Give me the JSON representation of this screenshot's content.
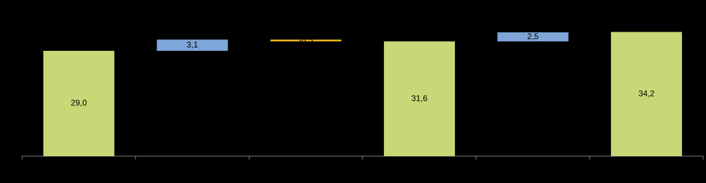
{
  "chart_data": {
    "type": "waterfall",
    "categories": [
      null,
      null,
      null,
      null,
      null,
      null
    ],
    "values": [
      29.0,
      3.1,
      -0.5,
      31.6,
      2.5,
      34.2
    ],
    "value_labels": [
      "29,0",
      "3,1",
      "-0,5",
      "31,6",
      "2,5",
      "34,2"
    ],
    "is_total": [
      true,
      false,
      false,
      true,
      false,
      true
    ],
    "colors": [
      "#c9d876",
      "#7ea6d8",
      "#f0b323",
      "#c9d876",
      "#7ea6d8",
      "#c9d876"
    ],
    "ylim": [
      0,
      43
    ]
  }
}
